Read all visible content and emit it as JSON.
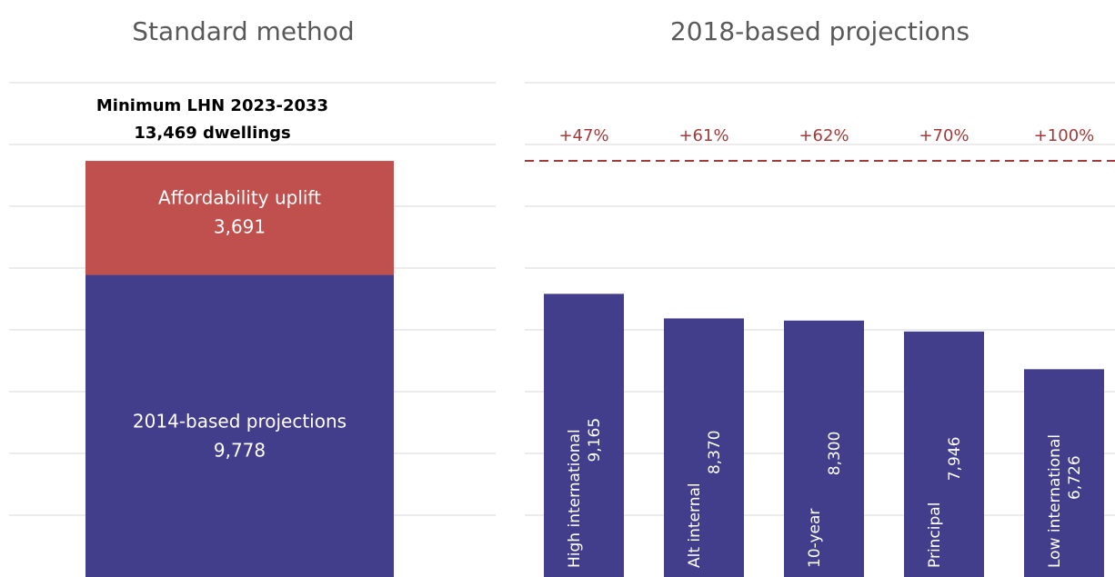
{
  "chart_data": [
    {
      "type": "stacked_bar",
      "title": "Standard method",
      "annotation": {
        "text": "Minimum LHN 2023-2033",
        "value": 13469,
        "value_label": "13,469 dwellings"
      },
      "series": [
        {
          "name": "2014-based projections",
          "color": "#423e8c",
          "values": [
            9778
          ],
          "value_labels": [
            "9,778"
          ]
        },
        {
          "name": "Affordability uplift",
          "color": "#c0504d",
          "values": [
            3691
          ],
          "value_labels": [
            "3,691"
          ]
        }
      ],
      "ylim": [
        0,
        16000
      ],
      "yticks": [
        2000,
        4000,
        6000,
        8000,
        10000,
        12000,
        14000,
        16000
      ],
      "grid": true
    },
    {
      "type": "bar",
      "title": "2018-based projections",
      "categories": [
        "High international",
        "Alt internal",
        "10-year",
        "Principal",
        "Low international"
      ],
      "series": [
        {
          "color": "#423e8c",
          "values": [
            9165,
            8370,
            8300,
            7946,
            6726
          ],
          "value_labels": [
            "9,165",
            "8,370",
            "8,300",
            "7,946",
            "6,726"
          ]
        }
      ],
      "reference_line": {
        "value": 13469,
        "color": "#a33a3a",
        "style": "dashed"
      },
      "change_pct": [
        47,
        61,
        62,
        70,
        100
      ],
      "change_labels": [
        "+47%",
        "+61%",
        "+62%",
        "+70%",
        "+100%"
      ],
      "ylim": [
        0,
        16000
      ],
      "yticks": [
        2000,
        4000,
        6000,
        8000,
        10000,
        12000,
        14000,
        16000
      ],
      "grid": true
    }
  ]
}
